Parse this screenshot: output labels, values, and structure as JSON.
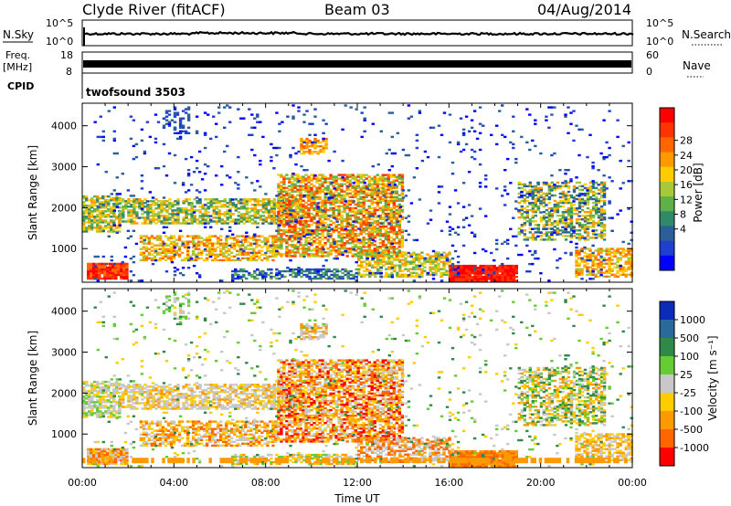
{
  "header": {
    "title": "Clyde River (fitACF)",
    "beam": "Beam 03",
    "date": "04/Aug/2014"
  },
  "top_panels": {
    "nsky_label": "N.Sky",
    "nsearch_label": "N.Search",
    "freq_label_1": "Freq.",
    "freq_label_2": "[MHz]",
    "nave_label": "Nave",
    "cpid_label": "CPID",
    "program": "twofsound 3503",
    "ticks_left_noise": [
      "10^5",
      "10^0"
    ],
    "ticks_right_noise": [
      "10^5",
      "10^0"
    ],
    "ticks_left_freq": [
      "18",
      "8"
    ],
    "ticks_right_nave": [
      "60",
      "0"
    ]
  },
  "chart_data": [
    {
      "type": "heatmap",
      "name": "power",
      "ylabel": "Slant Range [km]",
      "yticks": [
        1000,
        2000,
        3000,
        4000
      ],
      "ylim": [
        180,
        4550
      ],
      "xlim": [
        0,
        24
      ],
      "colorbar_label": "Power [dB]",
      "colorbar_ticks": [
        "28",
        "24",
        "20",
        "16",
        "12",
        "8",
        "4"
      ],
      "colorbar_colors": [
        "#ff0000",
        "#ff3300",
        "#ff6600",
        "#ff9900",
        "#ffcc00",
        "#a8c838",
        "#5fb048",
        "#2f8a6a",
        "#2c5f9a",
        "#1e3fd0",
        "#0000ff"
      ]
    },
    {
      "type": "heatmap",
      "name": "velocity",
      "ylabel": "Slant Range [km]",
      "yticks": [
        1000,
        2000,
        3000,
        4000
      ],
      "ylim": [
        180,
        4550
      ],
      "xlim": [
        0,
        24
      ],
      "xlabel": "Time UT",
      "xticks": [
        "00:00",
        "04:00",
        "08:00",
        "12:00",
        "16:00",
        "20:00",
        "00:00"
      ],
      "colorbar_label": "Velocity [m s⁻¹]",
      "colorbar_ticks": [
        "1000",
        "500",
        "100",
        "25",
        "-25",
        "-100",
        "-500",
        "-1000"
      ],
      "colorbar_colors": [
        "#0a2cb8",
        "#2a6a9a",
        "#2f8a4a",
        "#66cc33",
        "#c8c8c8",
        "#ffcc00",
        "#ff9900",
        "#ff6600",
        "#ff0000"
      ]
    }
  ]
}
